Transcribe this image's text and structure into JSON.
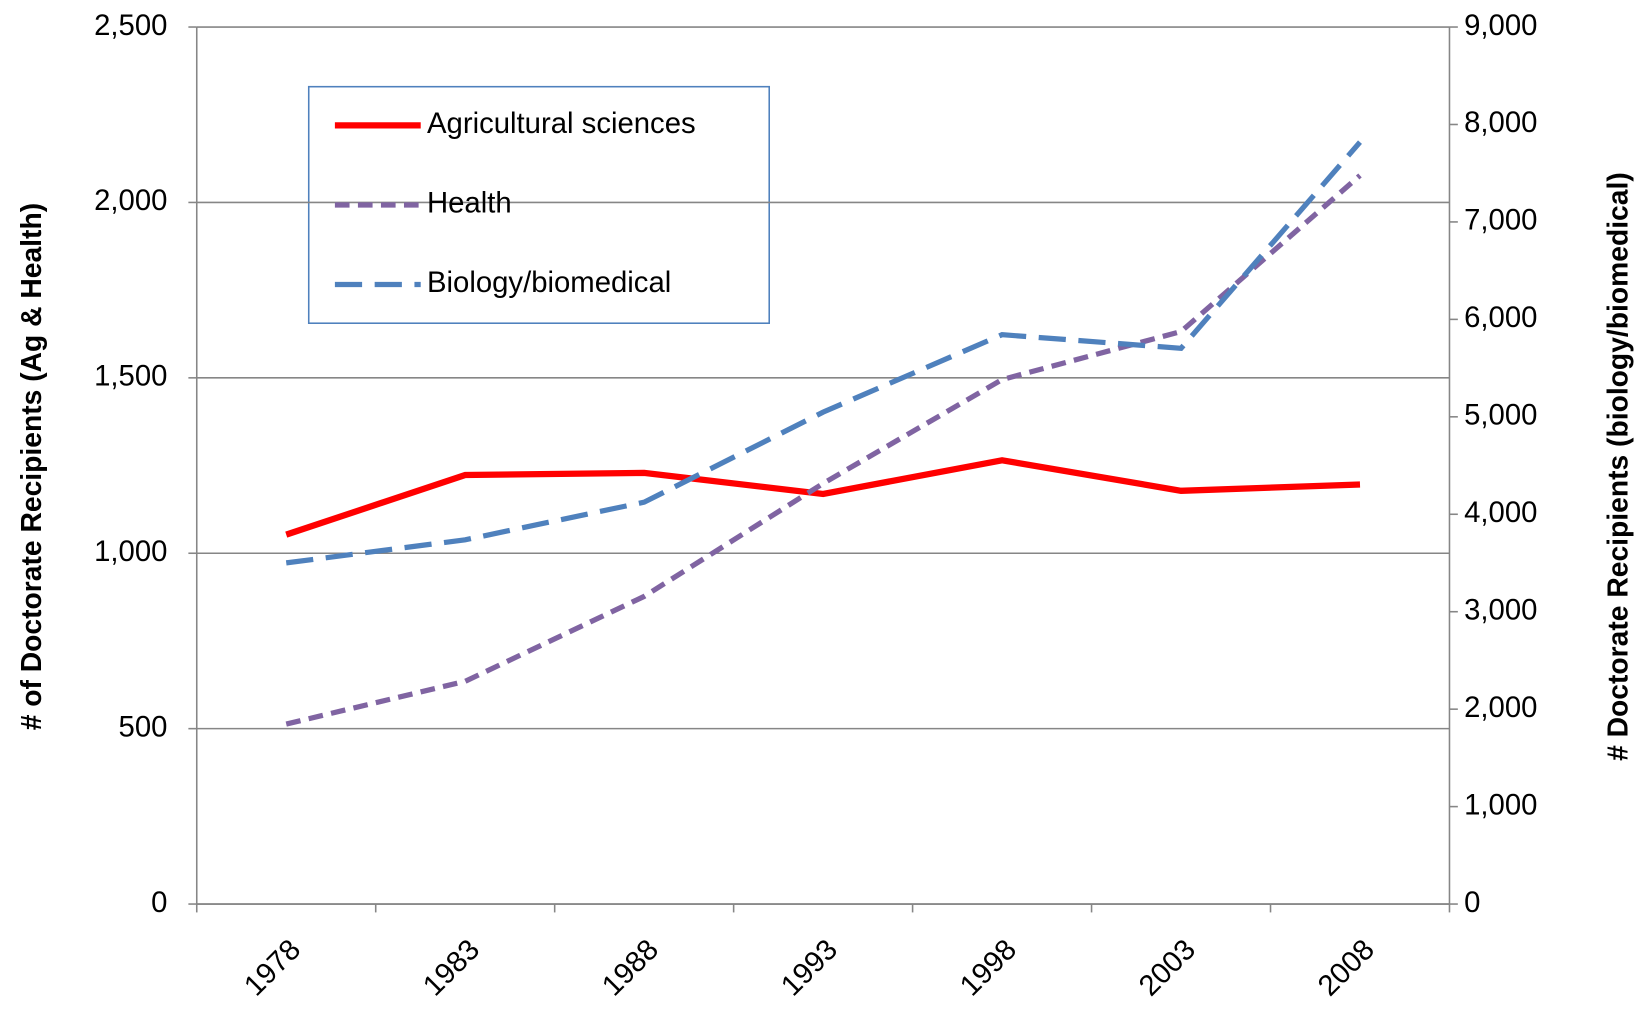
{
  "chart_data": {
    "type": "line",
    "categories": [
      "1978",
      "1983",
      "1988",
      "1993",
      "1998",
      "2003",
      "2008"
    ],
    "ylabel": "# of Doctorate Recipients (Ag & Health)",
    "y2label": "# Doctorate Recipients (biology/biomedical)",
    "ylim": [
      0,
      2500
    ],
    "yticks": [
      0,
      500,
      {
        "value": 1000,
        "label": "1,000"
      },
      {
        "value": 1500,
        "label": "1,500"
      },
      {
        "value": 2000,
        "label": "2,000"
      },
      {
        "value": 2500,
        "label": "2,500"
      }
    ],
    "y2lim": [
      0,
      9000
    ],
    "y2ticks": [
      0,
      {
        "value": 1000,
        "label": "1,000"
      },
      {
        "value": 2000,
        "label": "2,000"
      },
      {
        "value": 3000,
        "label": "3,000"
      },
      {
        "value": 4000,
        "label": "4,000"
      },
      {
        "value": 5000,
        "label": "5,000"
      },
      {
        "value": 6000,
        "label": "6,000"
      },
      {
        "value": 7000,
        "label": "7,000"
      },
      {
        "value": 8000,
        "label": "8,000"
      },
      {
        "value": 9000,
        "label": "9,000"
      }
    ],
    "grid": true,
    "legend": "upper left",
    "series": [
      {
        "name": "Agricultural sciences",
        "color": "#ff0000",
        "dash": "solid",
        "values": [
          1053,
          1223,
          1229,
          1169,
          1265,
          1178,
          1196
        ]
      },
      {
        "name": "Health",
        "color": "#8064a2",
        "dash": "short",
        "values": [
          513,
          635,
          877,
          1199,
          1495,
          1632,
          2077
        ]
      },
      {
        "name": "Biology/biomedical",
        "color": "#4f81bd",
        "dash": "long",
        "axis": "y2",
        "values": [
          3501,
          3738,
          4124,
          5048,
          5843,
          5703,
          7819
        ]
      }
    ]
  }
}
